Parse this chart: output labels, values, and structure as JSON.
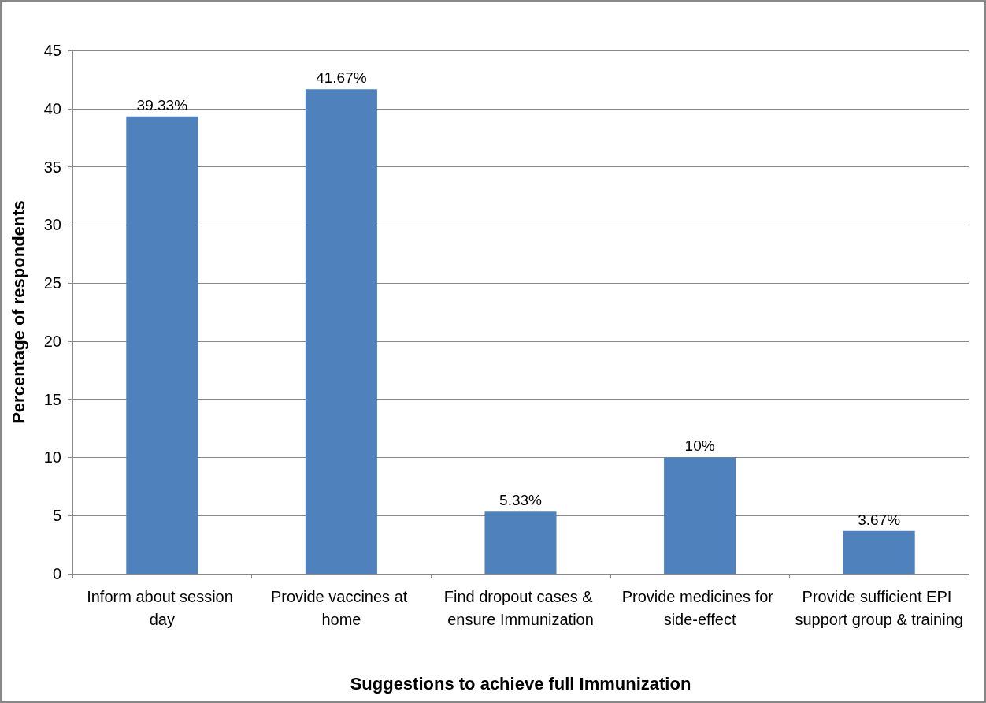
{
  "chart_data": {
    "type": "bar",
    "xlabel": "Suggestions to achieve full Immunization",
    "ylabel": "Percentage of respondents",
    "categories": [
      "Inform about session day",
      "Provide vaccines at home",
      "Find dropout cases & ensure Immunization",
      "Provide medicines for side-effect",
      "Provide sufficient EPI support group & training"
    ],
    "values": [
      39.33,
      41.67,
      5.33,
      10,
      3.67
    ],
    "value_labels": [
      "39.33%",
      "41.67%",
      "5.33%",
      "10%",
      "3.67%"
    ],
    "color": "#4f81bd",
    "ylim": [
      0,
      45
    ],
    "yticks": [
      0,
      5,
      10,
      15,
      20,
      25,
      30,
      35,
      40,
      45
    ],
    "grid": "y"
  }
}
